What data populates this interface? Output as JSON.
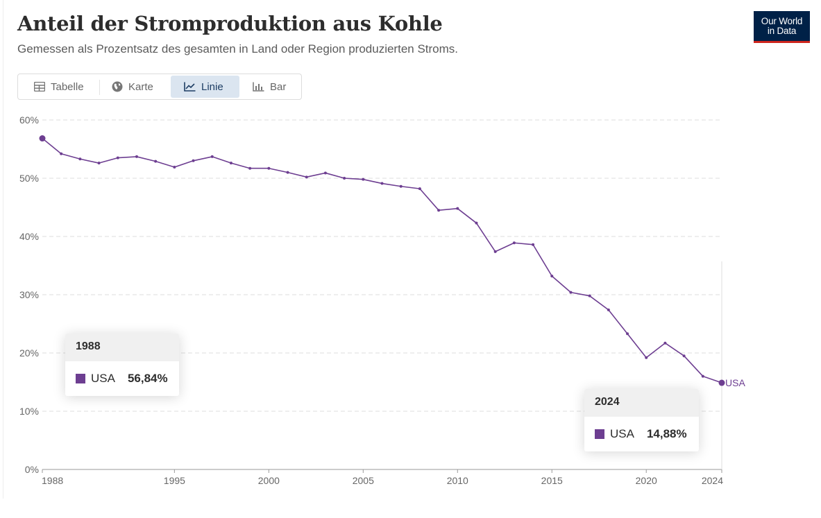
{
  "header": {
    "title": "Anteil der Stromproduktion aus Kohle",
    "subtitle": "Gemessen als Prozentsatz des gesamten in Land oder Region produzierten Stroms.",
    "logo_line1": "Our World",
    "logo_line2": "in Data"
  },
  "tabs": [
    {
      "label": "Tabelle",
      "icon": "table-icon",
      "active": false
    },
    {
      "label": "Karte",
      "icon": "globe-icon",
      "active": false
    },
    {
      "label": "Linie",
      "icon": "line-chart-icon",
      "active": true
    },
    {
      "label": "Bar",
      "icon": "bar-chart-icon",
      "active": false
    }
  ],
  "colors": {
    "series": "#6d3e91",
    "grid": "#dddddd",
    "axis": "#666666",
    "active_tab_bg": "#dbe5f0",
    "logo_bg": "#002147",
    "logo_accent": "#ce261e"
  },
  "tooltips": [
    {
      "year": "1988",
      "entity": "USA",
      "value": "56,84%"
    },
    {
      "year": "2024",
      "entity": "USA",
      "value": "14,88%"
    }
  ],
  "chart_data": {
    "type": "line",
    "title": "Anteil der Stromproduktion aus Kohle",
    "ylim": [
      0,
      60
    ],
    "y_ticks": [
      0,
      10,
      20,
      30,
      40,
      50,
      60
    ],
    "y_tick_labels": [
      "0%",
      "10%",
      "20%",
      "30%",
      "40%",
      "50%",
      "60%"
    ],
    "xlim": [
      1988,
      2024
    ],
    "x_ticks": [
      1988,
      1995,
      2000,
      2005,
      2010,
      2015,
      2020,
      2024
    ],
    "x_tick_labels": [
      "1988",
      "1995",
      "2000",
      "2005",
      "2010",
      "2015",
      "2020",
      "2024"
    ],
    "grid": true,
    "x": [
      1988,
      1989,
      1990,
      1991,
      1992,
      1993,
      1994,
      1995,
      1996,
      1997,
      1998,
      1999,
      2000,
      2001,
      2002,
      2003,
      2004,
      2005,
      2006,
      2007,
      2008,
      2009,
      2010,
      2011,
      2012,
      2013,
      2014,
      2015,
      2016,
      2017,
      2018,
      2019,
      2020,
      2021,
      2022,
      2023,
      2024
    ],
    "series": [
      {
        "name": "USA",
        "values": [
          56.84,
          54.2,
          53.3,
          52.6,
          53.5,
          53.7,
          52.9,
          51.9,
          53.0,
          53.7,
          52.6,
          51.7,
          51.7,
          51.0,
          50.2,
          50.9,
          50.0,
          49.8,
          49.1,
          48.6,
          48.2,
          44.5,
          44.8,
          42.3,
          37.4,
          38.9,
          38.6,
          33.2,
          30.4,
          29.8,
          27.4,
          23.3,
          19.2,
          21.7,
          19.5,
          16.0,
          14.88
        ]
      }
    ],
    "end_labels": [
      "USA"
    ]
  }
}
